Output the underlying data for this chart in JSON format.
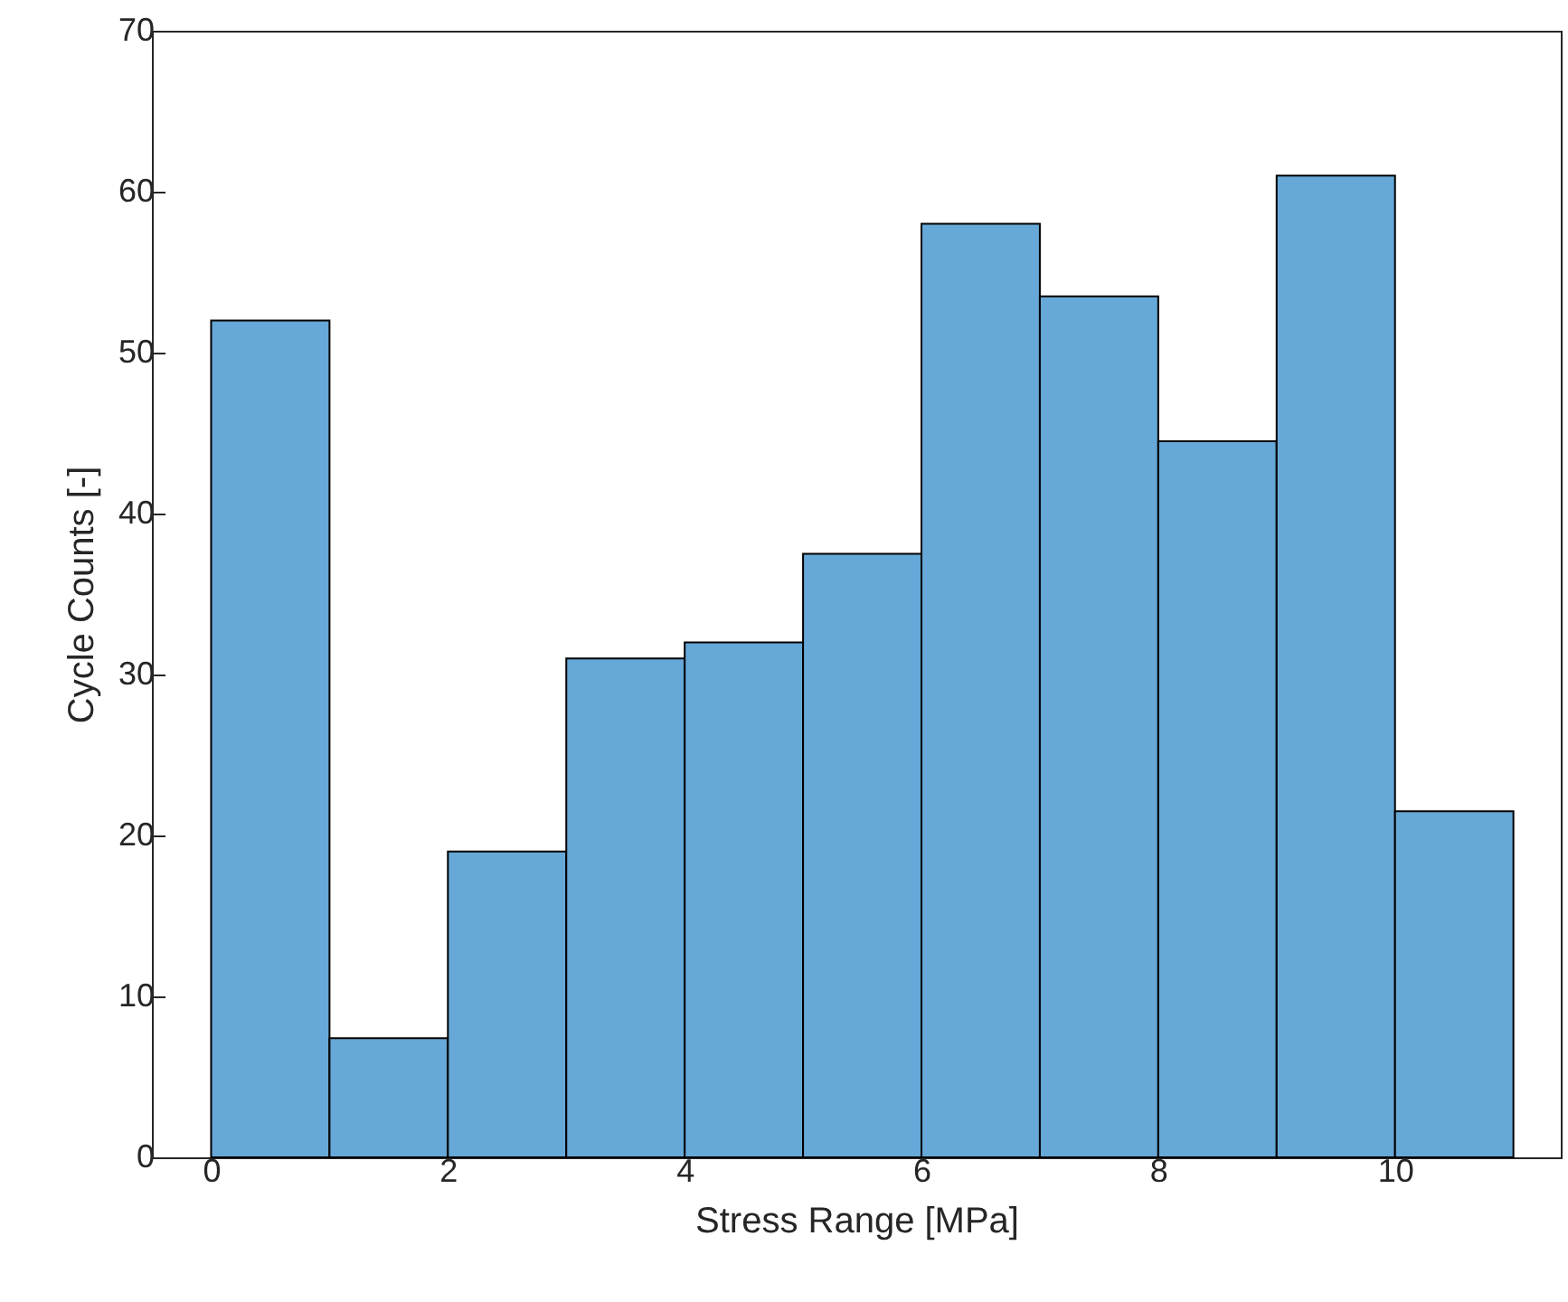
{
  "chart_data": {
    "type": "histogram",
    "xlabel": "Stress Range [MPa]",
    "ylabel": "Cycle Counts [-]",
    "bins": [
      0,
      1,
      2,
      3,
      4,
      5,
      6,
      7,
      8,
      9,
      10,
      11
    ],
    "values": [
      52,
      7.4,
      19,
      31,
      32,
      37.5,
      58,
      53.5,
      44.5,
      61,
      21.5
    ],
    "color": "#66a8d7",
    "xlim": [
      -0.5,
      11.4
    ],
    "xticks": [
      0,
      2,
      4,
      6,
      8,
      10
    ],
    "ylim": [
      0,
      70
    ],
    "yticks": [
      0,
      10,
      20,
      30,
      40,
      50,
      60,
      70
    ],
    "grid": false
  }
}
